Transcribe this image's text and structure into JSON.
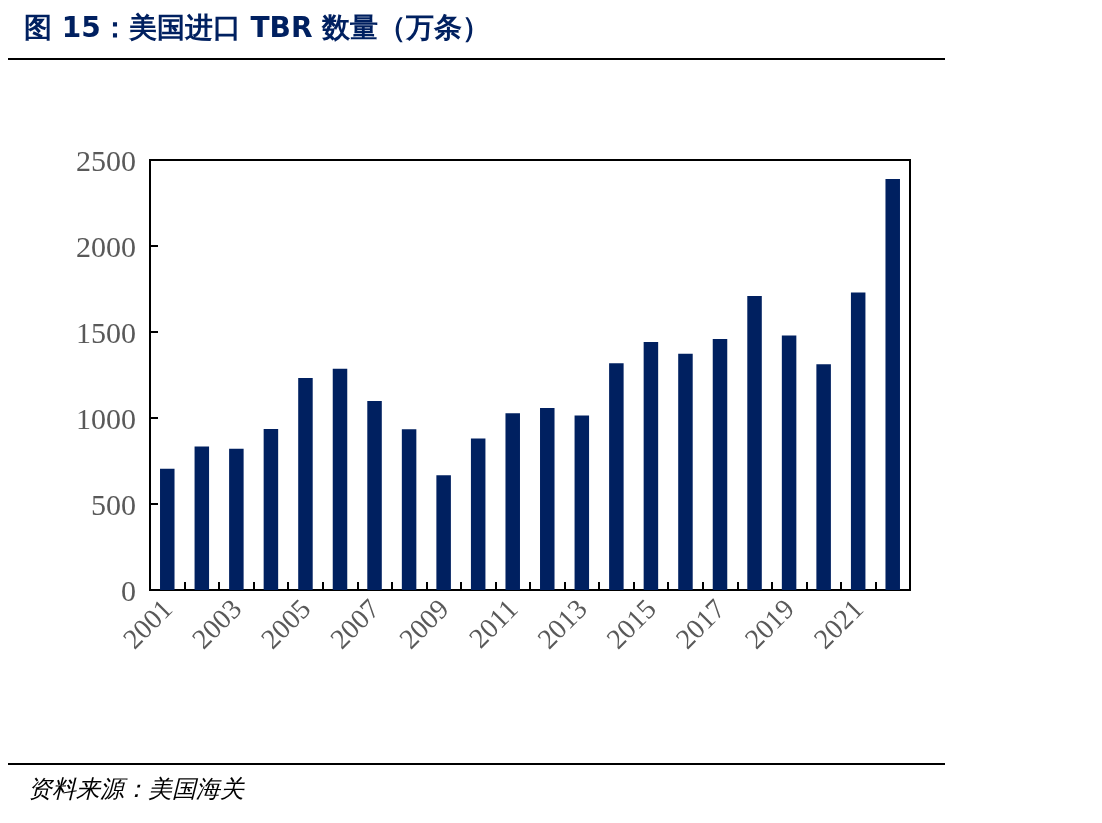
{
  "chart_data": {
    "type": "bar",
    "title": "图 15：美国进口 TBR 数量（万条）",
    "annotations": [
      "资料来源：美国海关"
    ],
    "categories": [
      "2001",
      null,
      "2003",
      null,
      "2005",
      null,
      "2007",
      null,
      "2009",
      null,
      "2011",
      null,
      "2013",
      null,
      "2015",
      null,
      "2017",
      null,
      "2019",
      null,
      "2021",
      null
    ],
    "values": [
      705,
      835,
      821,
      936,
      1233,
      1286,
      1099,
      934,
      667,
      881,
      1027,
      1058,
      1014,
      1319,
      1442,
      1374,
      1459,
      1710,
      1479,
      1313,
      1730,
      2389
    ],
    "color": "#002060",
    "ylim": [
      0,
      2500
    ],
    "yticks": [
      0,
      500,
      1000,
      1500,
      2000,
      2500
    ]
  }
}
